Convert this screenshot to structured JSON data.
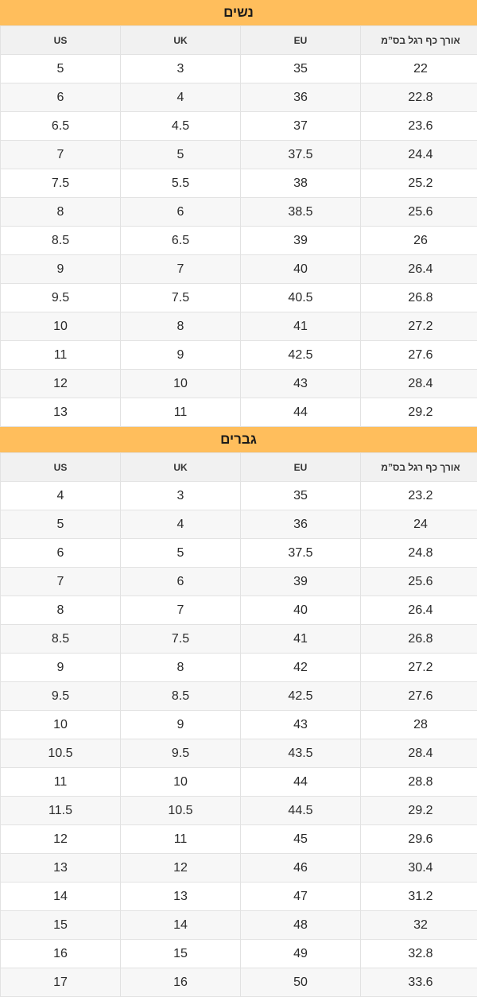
{
  "women": {
    "title": "נשים",
    "headers": [
      "US",
      "UK",
      "EU",
      "אורך כף רגל בס”מ"
    ],
    "rows": [
      [
        "5",
        "3",
        "35",
        "22"
      ],
      [
        "6",
        "4",
        "36",
        "22.8"
      ],
      [
        "6.5",
        "4.5",
        "37",
        "23.6"
      ],
      [
        "7",
        "5",
        "37.5",
        "24.4"
      ],
      [
        "7.5",
        "5.5",
        "38",
        "25.2"
      ],
      [
        "8",
        "6",
        "38.5",
        "25.6"
      ],
      [
        "8.5",
        "6.5",
        "39",
        "26"
      ],
      [
        "9",
        "7",
        "40",
        "26.4"
      ],
      [
        "9.5",
        "7.5",
        "40.5",
        "26.8"
      ],
      [
        "10",
        "8",
        "41",
        "27.2"
      ],
      [
        "11",
        "9",
        "42.5",
        "27.6"
      ],
      [
        "12",
        "10",
        "43",
        "28.4"
      ],
      [
        "13",
        "11",
        "44",
        "29.2"
      ]
    ]
  },
  "men": {
    "title": "גברים",
    "headers": [
      "US",
      "UK",
      "EU",
      "אורך כף רגל בס”מ"
    ],
    "rows": [
      [
        "4",
        "3",
        "35",
        "23.2"
      ],
      [
        "5",
        "4",
        "36",
        "24"
      ],
      [
        "6",
        "5",
        "37.5",
        "24.8"
      ],
      [
        "7",
        "6",
        "39",
        "25.6"
      ],
      [
        "8",
        "7",
        "40",
        "26.4"
      ],
      [
        "8.5",
        "7.5",
        "41",
        "26.8"
      ],
      [
        "9",
        "8",
        "42",
        "27.2"
      ],
      [
        "9.5",
        "8.5",
        "42.5",
        "27.6"
      ],
      [
        "10",
        "9",
        "43",
        "28"
      ],
      [
        "10.5",
        "9.5",
        "43.5",
        "28.4"
      ],
      [
        "11",
        "10",
        "44",
        "28.8"
      ],
      [
        "11.5",
        "10.5",
        "44.5",
        "29.2"
      ],
      [
        "12",
        "11",
        "45",
        "29.6"
      ],
      [
        "13",
        "12",
        "46",
        "30.4"
      ],
      [
        "14",
        "13",
        "47",
        "31.2"
      ],
      [
        "15",
        "14",
        "48",
        "32"
      ],
      [
        "16",
        "15",
        "49",
        "32.8"
      ],
      [
        "17",
        "16",
        "50",
        "33.6"
      ]
    ]
  }
}
